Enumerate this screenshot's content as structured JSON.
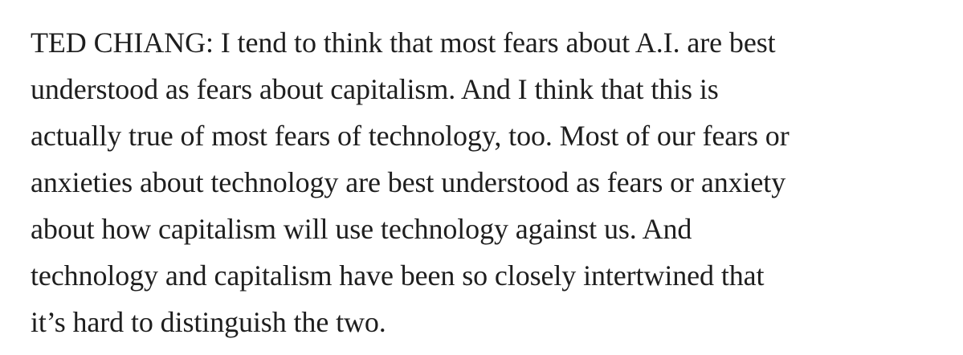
{
  "quote": {
    "lines": [
      "TED CHIANG: I tend to think that most fears about A.I. are best",
      "understood as fears about capitalism. And I think that this is",
      "actually true of most fears of technology, too. Most of our fears or",
      "anxieties about technology are best understood as fears or anxiety",
      "about how capitalism will use technology against us. And",
      "technology and capitalism have been so closely intertwined that",
      "it’s hard to distinguish the two."
    ]
  }
}
